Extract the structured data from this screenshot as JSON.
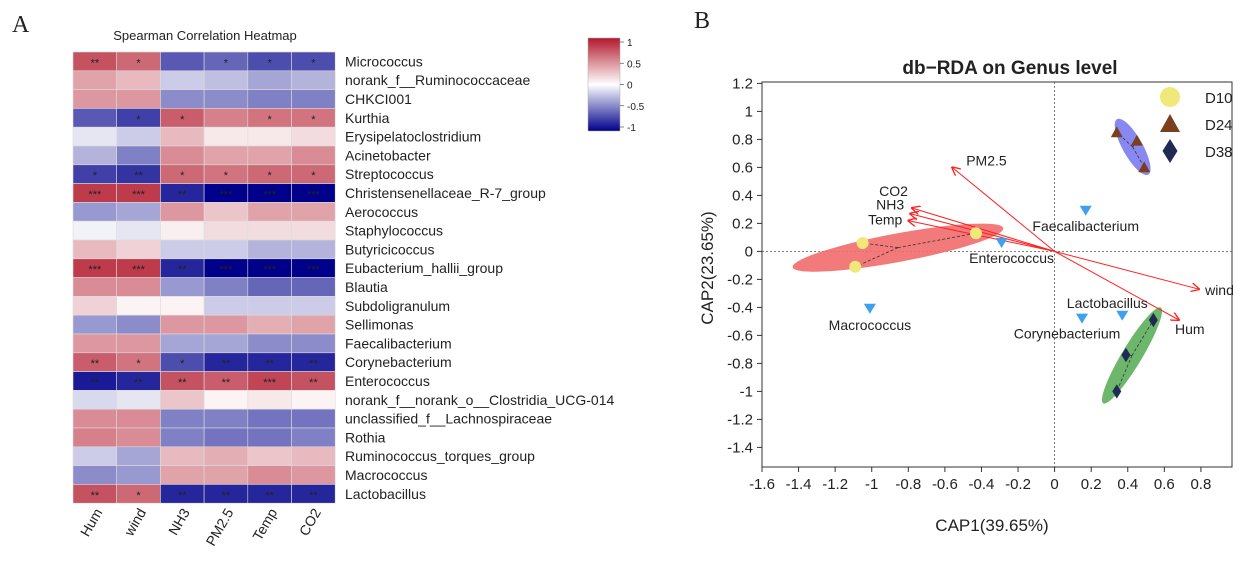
{
  "chart_data": [
    {
      "type": "heatmap",
      "panel_label": "A",
      "title": "Spearman Correlation Heatmap",
      "columns": [
        "Hum",
        "wind",
        "NH3",
        "PM2.5",
        "Temp",
        "CO2"
      ],
      "rows": [
        "Micrococcus",
        "norank_f__Ruminococcaceae",
        "CHKCI001",
        "Kurthia",
        "Erysipelatoclostridium",
        "Acinetobacter",
        "Streptococcus",
        "Christensenellaceae_R-7_group",
        "Aerococcus",
        "Staphylococcus",
        "Butyricicoccus",
        "Eubacterium_hallii_group",
        "Blautia",
        "Subdoligranulum",
        "Sellimonas",
        "Faecalibacterium",
        "Corynebacterium",
        "Enterococcus",
        "norank_f__norank_o__Clostridia_UCG-014",
        "unclassified_f__Lachnospiraceae",
        "Rothia",
        "Ruminococcus_torques_group",
        "Macrococcus",
        "Lactobacillus"
      ],
      "values": [
        [
          0.75,
          0.65,
          -0.65,
          -0.6,
          -0.7,
          -0.7
        ],
        [
          0.4,
          0.3,
          -0.2,
          -0.25,
          -0.35,
          -0.3
        ],
        [
          0.45,
          0.45,
          -0.45,
          -0.45,
          -0.5,
          -0.5
        ],
        [
          -0.65,
          -0.75,
          0.7,
          0.55,
          0.6,
          0.6
        ],
        [
          -0.1,
          -0.2,
          0.3,
          0.1,
          0.1,
          0.15
        ],
        [
          -0.3,
          -0.5,
          0.5,
          0.4,
          0.4,
          0.5
        ],
        [
          -0.75,
          -0.8,
          0.65,
          0.6,
          0.65,
          0.65
        ],
        [
          0.85,
          0.85,
          -0.85,
          -1,
          -1,
          -1
        ],
        [
          -0.4,
          -0.35,
          0.45,
          0.25,
          0.4,
          0.4
        ],
        [
          -0.05,
          -0.1,
          0.07,
          0.15,
          0.15,
          0.15
        ],
        [
          0.3,
          0.2,
          -0.2,
          -0.2,
          -0.3,
          -0.3
        ],
        [
          0.85,
          0.85,
          -0.85,
          -1,
          -1,
          -1
        ],
        [
          0.5,
          0.5,
          -0.4,
          -0.5,
          -0.6,
          -0.6
        ],
        [
          0.2,
          0.05,
          0.05,
          -0.2,
          -0.2,
          -0.2
        ],
        [
          -0.4,
          -0.45,
          0.45,
          0.45,
          0.35,
          0.4
        ],
        [
          0.45,
          0.45,
          -0.35,
          -0.35,
          -0.45,
          -0.45
        ],
        [
          0.7,
          0.6,
          -0.7,
          -0.85,
          -0.85,
          -0.85
        ],
        [
          -0.9,
          -0.85,
          0.75,
          0.7,
          0.8,
          0.75
        ],
        [
          -0.15,
          -0.1,
          0.25,
          0.05,
          0.1,
          0.05
        ],
        [
          0.5,
          0.5,
          -0.5,
          -0.5,
          -0.55,
          -0.55
        ],
        [
          0.55,
          0.5,
          -0.5,
          -0.55,
          -0.55,
          -0.5
        ],
        [
          -0.2,
          -0.35,
          0.3,
          0.35,
          0.25,
          0.3
        ],
        [
          -0.45,
          -0.4,
          0.4,
          0.4,
          0.5,
          0.45
        ],
        [
          0.75,
          0.65,
          -0.85,
          -0.85,
          -0.85,
          -0.85
        ]
      ],
      "significance": [
        [
          "**",
          "*",
          "",
          "*",
          "*",
          "*"
        ],
        [
          "",
          "",
          "",
          "",
          "",
          ""
        ],
        [
          "",
          "",
          "",
          "",
          "",
          ""
        ],
        [
          "",
          "*",
          "*",
          "",
          "*",
          "*"
        ],
        [
          "",
          "",
          "",
          "",
          "",
          ""
        ],
        [
          "",
          "",
          "",
          "",
          "",
          ""
        ],
        [
          "*",
          "**",
          "*",
          "*",
          "*",
          "*"
        ],
        [
          "***",
          "***",
          "**",
          "***",
          "***",
          "***"
        ],
        [
          "",
          "",
          "",
          "",
          "",
          ""
        ],
        [
          "",
          "",
          "",
          "",
          "",
          ""
        ],
        [
          "",
          "",
          "",
          "",
          "",
          ""
        ],
        [
          "***",
          "***",
          "**",
          "***",
          "***",
          "***"
        ],
        [
          "",
          "",
          "",
          "",
          "",
          ""
        ],
        [
          "",
          "",
          "",
          "",
          "",
          ""
        ],
        [
          "",
          "",
          "",
          "",
          "",
          ""
        ],
        [
          "",
          "",
          "",
          "",
          "",
          ""
        ],
        [
          "**",
          "*",
          "*",
          "**",
          "**",
          "**"
        ],
        [
          "**",
          "**",
          "**",
          "**",
          "***",
          "**"
        ],
        [
          "",
          "",
          "",
          "",
          "",
          ""
        ],
        [
          "",
          "",
          "",
          "",
          "",
          ""
        ],
        [
          "",
          "",
          "",
          "",
          "",
          ""
        ],
        [
          "",
          "",
          "",
          "",
          "",
          ""
        ],
        [
          "",
          "",
          "",
          "",
          "",
          ""
        ],
        [
          "**",
          "*",
          "**",
          "**",
          "**",
          "**"
        ]
      ],
      "colorbar": {
        "ticks": [
          "1",
          "0.5",
          "0",
          "-0.5",
          "-1"
        ],
        "range": [
          -1,
          1
        ],
        "low_color": "#00008B",
        "mid_color": "#FFFFFF",
        "high_color": "#B2182B"
      }
    },
    {
      "type": "scatter",
      "panel_label": "B",
      "title": "db−RDA on Genus level",
      "xlabel": "CAP1(39.65%)",
      "ylabel": "CAP2(23.65%)",
      "xlim": [
        -1.6,
        0.97
      ],
      "ylim": [
        -1.54,
        1.21
      ],
      "xticks": [
        "-1.6",
        "-1.4",
        "-1.2",
        "-1",
        "-0.8",
        "-0.6",
        "-0.4",
        "-0.2",
        "0",
        "0.2",
        "0.4",
        "0.6",
        "0.8"
      ],
      "yticks": [
        "1.2",
        "1",
        "0.8",
        "0.6",
        "0.4",
        "0.2",
        "0",
        "-0.2",
        "-0.4",
        "-0.6",
        "-0.8",
        "-1",
        "-1.2",
        "-1.4"
      ],
      "legend_position": "top-right",
      "groups": [
        {
          "name": "D10",
          "marker": "circle",
          "color": "#F0E878",
          "ellipse_color": "#F26B6B",
          "points": [
            [
              -1.05,
              0.06
            ],
            [
              -1.09,
              -0.11
            ],
            [
              -0.43,
              0.13
            ]
          ]
        },
        {
          "name": "D24",
          "marker": "triangle",
          "color": "#7B3F1E",
          "ellipse_color": "#7B7BF0",
          "points": [
            [
              0.34,
              0.85
            ],
            [
              0.45,
              0.79
            ],
            [
              0.49,
              0.6
            ]
          ]
        },
        {
          "name": "D38",
          "marker": "diamond",
          "color": "#1F2A55",
          "ellipse_color": "#5CAF5C",
          "points": [
            [
              0.54,
              -0.49
            ],
            [
              0.39,
              -0.74
            ],
            [
              0.34,
              -1.0
            ]
          ]
        }
      ],
      "species": [
        {
          "name": "Faecalibacterium",
          "x": 0.17,
          "y": 0.29
        },
        {
          "name": "Enterococcus",
          "x": -0.29,
          "y": 0.06
        },
        {
          "name": "Macrococcus",
          "x": -1.01,
          "y": -0.41
        },
        {
          "name": "Corynebacterium",
          "x": 0.15,
          "y": -0.48
        },
        {
          "name": "Lactobacillus",
          "x": 0.37,
          "y": -0.46
        }
      ],
      "species_color": "#3FA0F0",
      "arrows": [
        {
          "name": "PM2.5",
          "x": -0.56,
          "y": 0.6
        },
        {
          "name": "CO2",
          "x": -0.78,
          "y": 0.31
        },
        {
          "name": "NH3",
          "x": -0.79,
          "y": 0.27
        },
        {
          "name": "Temp",
          "x": -0.8,
          "y": 0.22
        },
        {
          "name": "wind",
          "x": 0.79,
          "y": -0.27
        },
        {
          "name": "Hum",
          "x": 0.68,
          "y": -0.49
        }
      ],
      "arrow_color": "#FF2020"
    }
  ]
}
